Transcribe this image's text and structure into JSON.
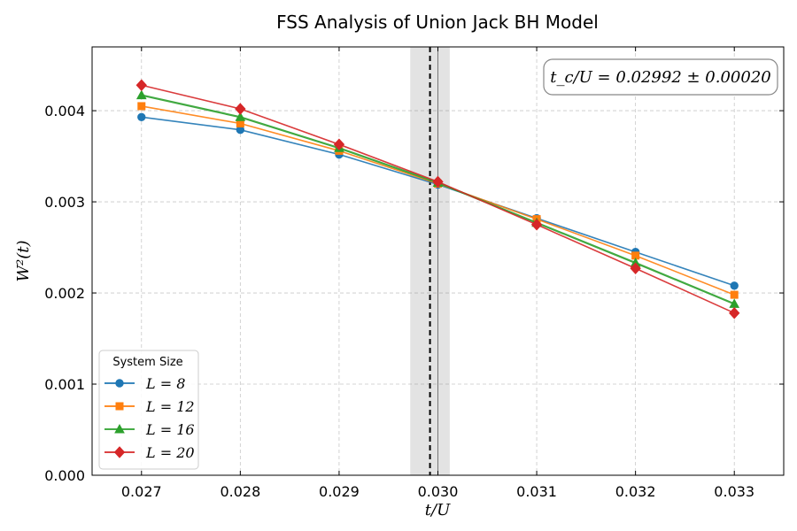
{
  "chart_data": {
    "type": "line",
    "title": "FSS Analysis of Union Jack BH Model",
    "xlabel": "t/U",
    "ylabel": "W²(t)",
    "xlim": [
      0.0265,
      0.0335
    ],
    "ylim": [
      0.0,
      0.0047
    ],
    "x_ticks": [
      "0.027",
      "0.028",
      "0.029",
      "0.030",
      "0.031",
      "0.032",
      "0.033"
    ],
    "y_ticks": [
      "0.000",
      "0.001",
      "0.002",
      "0.003",
      "0.004"
    ],
    "grid": true,
    "x": [
      0.027,
      0.028,
      0.029,
      0.03,
      0.031,
      0.032,
      0.033
    ],
    "series": [
      {
        "name": "L = 8",
        "color": "#1f77b4",
        "marker": "circle",
        "values": [
          0.00393,
          0.00379,
          0.00352,
          0.00319,
          0.00282,
          0.00245,
          0.00208
        ]
      },
      {
        "name": "L = 12",
        "color": "#ff7f0e",
        "marker": "square",
        "values": [
          0.00405,
          0.00386,
          0.00356,
          0.0032,
          0.00281,
          0.00241,
          0.00198
        ]
      },
      {
        "name": "L = 16",
        "color": "#2ca02c",
        "marker": "triangle",
        "values": [
          0.00417,
          0.00393,
          0.00359,
          0.00321,
          0.00277,
          0.00233,
          0.00188
        ]
      },
      {
        "name": "L = 20",
        "color": "#d62728",
        "marker": "diamond",
        "values": [
          0.00428,
          0.00402,
          0.00363,
          0.00322,
          0.00275,
          0.00227,
          0.00178
        ]
      }
    ],
    "critical_point": {
      "tc": 0.02992,
      "error": 0.0002,
      "label": "t_c/U = 0.02992 ± 0.00020"
    },
    "reference_line_x": 0.03,
    "legend": {
      "title": "System Size",
      "position": "lower-left"
    }
  }
}
